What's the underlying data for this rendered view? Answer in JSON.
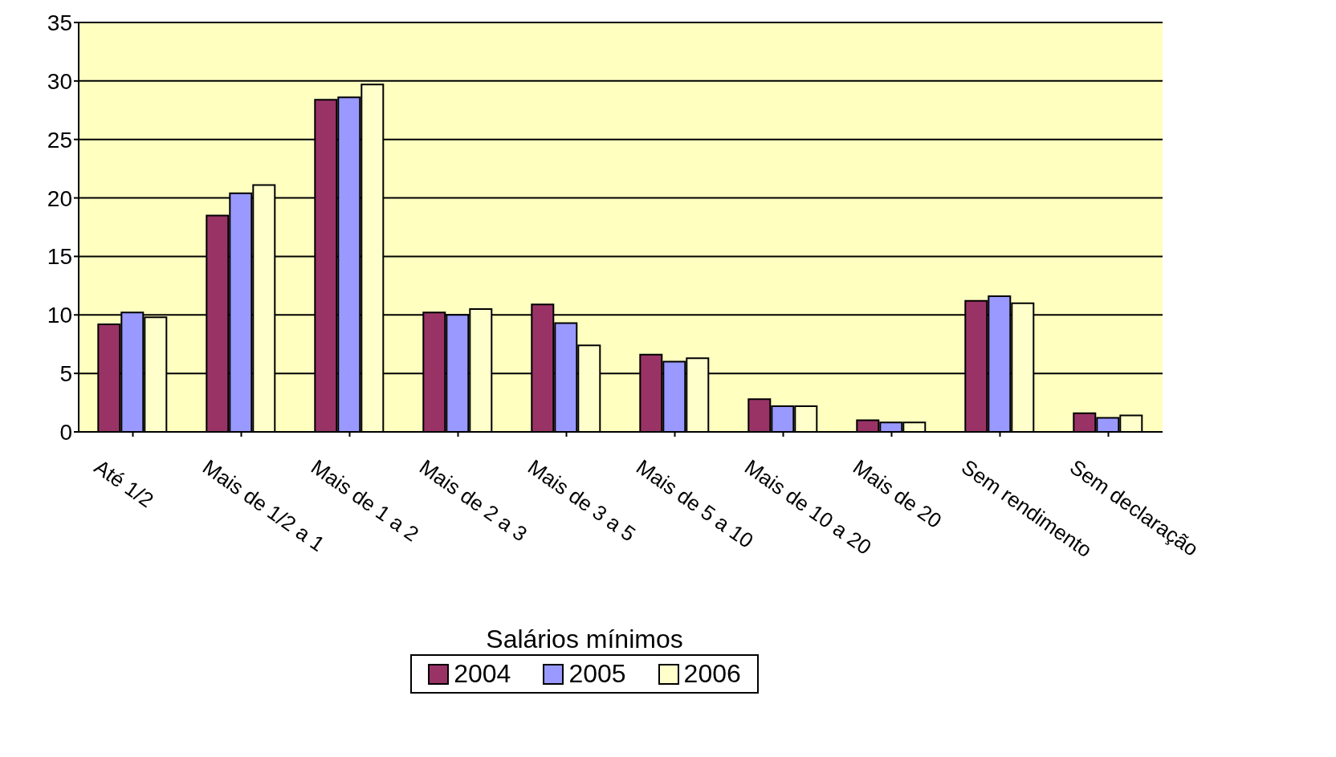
{
  "chart_data": {
    "type": "bar",
    "xlabel": "Salários mínimos",
    "categories": [
      "Até 1/2",
      "Mais de 1/2 a 1",
      "Mais de 1 a 2",
      "Mais de 2 a 3",
      "Mais de 3 a 5",
      "Mais de 5 a 10",
      "Mais de 10 a 20",
      "Mais de 20",
      "Sem rendimento",
      "Sem declaração"
    ],
    "series": [
      {
        "name": "2004",
        "color": "#993366",
        "values": [
          9.2,
          18.5,
          28.4,
          10.2,
          10.9,
          6.6,
          2.8,
          1.0,
          11.2,
          1.6
        ]
      },
      {
        "name": "2005",
        "color": "#9999ff",
        "values": [
          10.2,
          20.4,
          28.6,
          10.0,
          9.3,
          6.0,
          2.2,
          0.8,
          11.6,
          1.2
        ]
      },
      {
        "name": "2006",
        "color": "#ffffcc",
        "values": [
          9.8,
          21.1,
          29.7,
          10.5,
          7.4,
          6.3,
          2.2,
          0.8,
          11.0,
          1.4
        ]
      }
    ],
    "ylim": [
      0,
      35
    ],
    "yticks": [
      0,
      5,
      10,
      15,
      20,
      25,
      30,
      35
    ],
    "grid": "y",
    "legend": "bottom"
  }
}
